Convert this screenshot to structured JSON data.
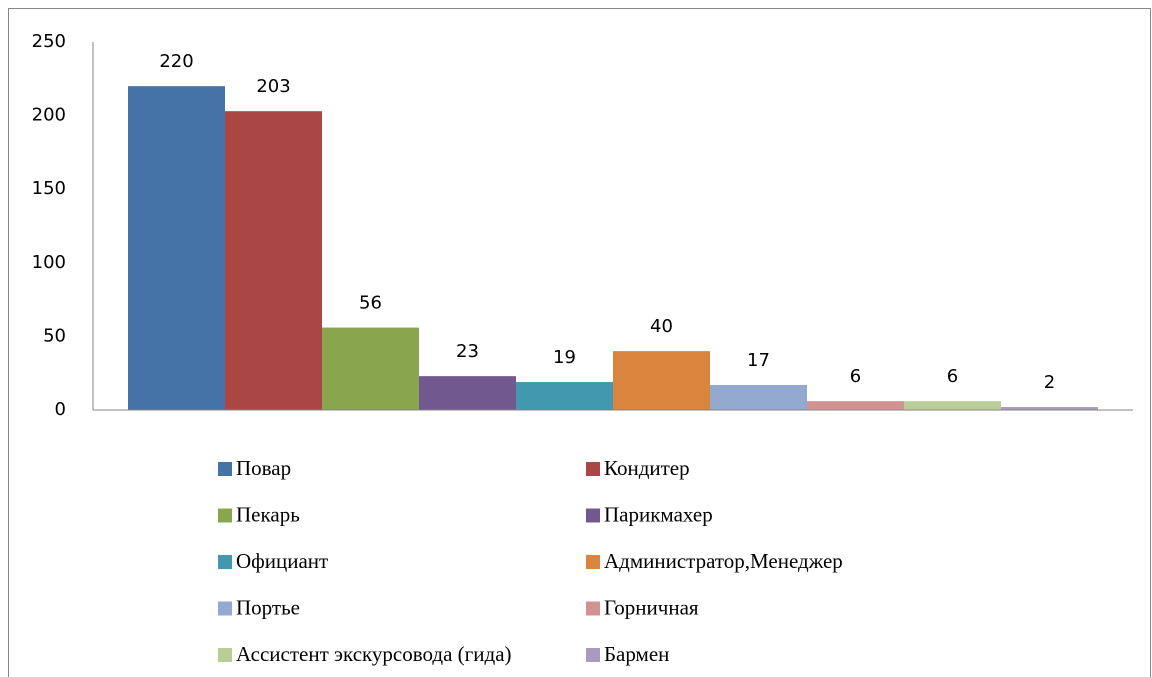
{
  "chart_data": {
    "type": "bar",
    "categories": [
      null
    ],
    "series": [
      {
        "name": "Повар",
        "color": "#4572a7",
        "values": [
          220
        ]
      },
      {
        "name": "Кондитер",
        "color": "#aa4643",
        "values": [
          203
        ]
      },
      {
        "name": "Пекарь",
        "color": "#89a54e",
        "values": [
          56
        ]
      },
      {
        "name": "Парикмахер",
        "color": "#71588f",
        "values": [
          23
        ]
      },
      {
        "name": "Официант",
        "color": "#4198af",
        "values": [
          19
        ]
      },
      {
        "name": "Администратор,Менеджер",
        "color": "#db843d",
        "values": [
          40
        ]
      },
      {
        "name": "Портье",
        "color": "#93a9cf",
        "values": [
          17
        ]
      },
      {
        "name": "Горничная",
        "color": "#d19392",
        "values": [
          6
        ]
      },
      {
        "name": "Ассистент экскурсовода (гида)",
        "color": "#b9cd96",
        "values": [
          6
        ]
      },
      {
        "name": "Бармен",
        "color": "#a99bbd",
        "values": [
          2
        ]
      }
    ],
    "ylim": [
      0,
      250
    ],
    "yticks": [
      0,
      50,
      100,
      150,
      200,
      250
    ],
    "grid": false,
    "legend": "bottom"
  }
}
